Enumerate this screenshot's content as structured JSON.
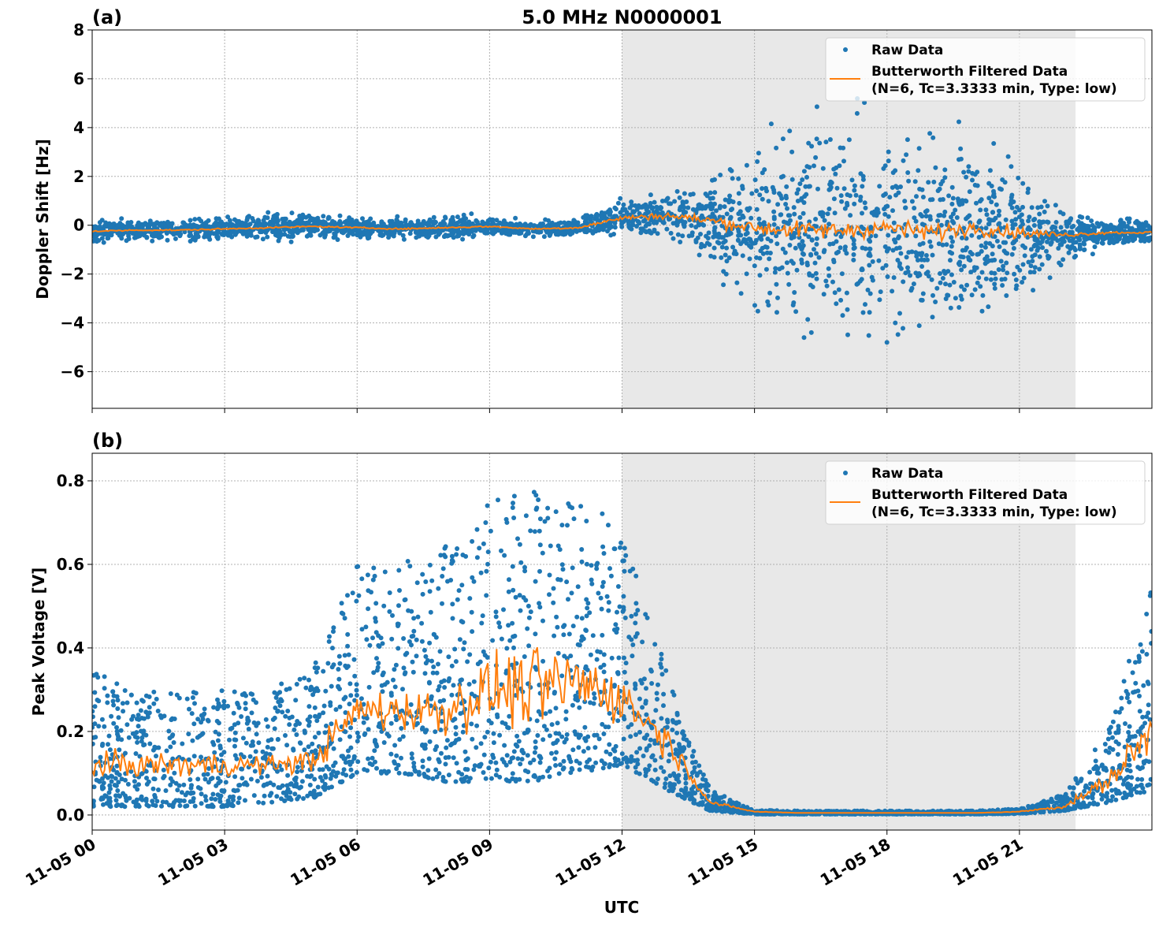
{
  "chart_data": [
    {
      "type": "scatter",
      "panel_label": "(a)",
      "title": "5.0 MHz N0000001",
      "xlabel": "",
      "ylabel": "Doppler Shift [Hz]",
      "xlim_hours_utc": [
        0,
        24
      ],
      "ylim": [
        -7.5,
        8
      ],
      "yticks": [
        -6,
        -4,
        -2,
        0,
        2,
        4,
        6,
        8
      ],
      "ytick_labels": [
        "−6",
        "−4",
        "−2",
        "0",
        "2",
        "4",
        "6",
        "8"
      ],
      "grid": true,
      "shaded_span_hours_utc": [
        12,
        22.27
      ],
      "legend_placement": "upper right",
      "legend": [
        "Raw Data",
        "Butterworth Filtered Data",
        "(N=6, Tc=3.3333 min, Type: low)"
      ],
      "series": [
        {
          "name": "Raw Data",
          "kind": "scatter",
          "color": "#1f77b4",
          "hours": [
            0,
            1,
            2,
            3,
            4,
            5,
            6,
            7,
            8,
            9,
            10,
            11,
            12,
            13,
            14,
            15,
            16,
            17,
            18,
            19,
            20,
            21,
            22,
            23,
            24
          ],
          "center": [
            -0.25,
            -0.2,
            -0.2,
            -0.15,
            -0.1,
            -0.05,
            -0.1,
            -0.15,
            -0.1,
            -0.05,
            -0.15,
            -0.1,
            0.3,
            0.4,
            0.2,
            -0.1,
            -0.2,
            -0.2,
            -0.1,
            -0.3,
            -0.1,
            -0.3,
            -0.4,
            -0.3,
            -0.3
          ],
          "half_spread": [
            0.4,
            0.4,
            0.4,
            0.45,
            0.5,
            0.45,
            0.35,
            0.35,
            0.4,
            0.35,
            0.3,
            0.3,
            0.6,
            0.8,
            1.5,
            3,
            3.5,
            3.8,
            3.8,
            3.5,
            3.2,
            2.5,
            1,
            0.5,
            0.5
          ]
        },
        {
          "name": "Butterworth Filtered Data",
          "kind": "line",
          "color": "#ff7f0e",
          "hours": [
            0,
            1,
            2,
            3,
            4,
            5,
            6,
            7,
            8,
            9,
            10,
            11,
            12,
            13,
            14,
            15,
            16,
            17,
            18,
            19,
            20,
            21,
            22,
            23,
            24
          ],
          "values": [
            -0.25,
            -0.2,
            -0.2,
            -0.15,
            -0.1,
            -0.05,
            -0.1,
            -0.15,
            -0.1,
            -0.05,
            -0.15,
            -0.1,
            0.3,
            0.4,
            0.2,
            -0.1,
            -0.2,
            -0.2,
            -0.1,
            -0.3,
            -0.1,
            -0.3,
            -0.4,
            -0.3,
            -0.3
          ],
          "jitter": [
            0.03,
            0.03,
            0.03,
            0.03,
            0.03,
            0.03,
            0.03,
            0.03,
            0.03,
            0.03,
            0.03,
            0.05,
            0.1,
            0.15,
            0.2,
            0.3,
            0.35,
            0.35,
            0.35,
            0.35,
            0.3,
            0.25,
            0.1,
            0.05,
            0.05
          ]
        }
      ]
    },
    {
      "type": "scatter",
      "panel_label": "(b)",
      "xlabel": "UTC",
      "ylabel": "Peak Voltage [V]",
      "xlim_hours_utc": [
        0,
        24
      ],
      "xticks_hours": [
        0,
        3,
        6,
        9,
        12,
        15,
        18,
        21
      ],
      "xtick_labels": [
        "11-05 00",
        "11-05 03",
        "11-05 06",
        "11-05 09",
        "11-05 12",
        "11-05 15",
        "11-05 18",
        "11-05 21"
      ],
      "ylim": [
        -0.036,
        0.866
      ],
      "yticks": [
        0.0,
        0.2,
        0.4,
        0.6,
        0.8
      ],
      "ytick_labels": [
        "0.0",
        "0.2",
        "0.4",
        "0.6",
        "0.8"
      ],
      "grid": true,
      "shaded_span_hours_utc": [
        12,
        22.27
      ],
      "legend_placement": "upper right",
      "legend": [
        "Raw Data",
        "Butterworth Filtered Data",
        "(N=6, Tc=3.3333 min, Type: low)"
      ],
      "series": [
        {
          "name": "Raw Data",
          "kind": "scatter",
          "color": "#1f77b4",
          "hours": [
            0,
            1,
            2,
            3,
            4,
            5,
            6,
            7,
            8,
            9,
            10,
            11,
            12,
            13,
            14,
            15,
            16,
            17,
            18,
            19,
            20,
            21,
            22,
            23,
            24
          ],
          "lower": [
            0.02,
            0.02,
            0.02,
            0.02,
            0.03,
            0.04,
            0.1,
            0.1,
            0.08,
            0.08,
            0.08,
            0.1,
            0.12,
            0.06,
            0.01,
            0.002,
            0.002,
            0.002,
            0.002,
            0.002,
            0.002,
            0.003,
            0.01,
            0.03,
            0.06
          ],
          "upper": [
            0.35,
            0.3,
            0.3,
            0.3,
            0.3,
            0.35,
            0.6,
            0.6,
            0.65,
            0.75,
            0.8,
            0.75,
            0.7,
            0.35,
            0.06,
            0.012,
            0.01,
            0.01,
            0.01,
            0.01,
            0.01,
            0.015,
            0.05,
            0.2,
            0.55
          ]
        },
        {
          "name": "Butterworth Filtered Data",
          "kind": "line",
          "color": "#ff7f0e",
          "hours": [
            0,
            1,
            2,
            3,
            4,
            5,
            6,
            7,
            8,
            9,
            10,
            11,
            12,
            13,
            14,
            15,
            16,
            17,
            18,
            19,
            20,
            21,
            22,
            23,
            24
          ],
          "values": [
            0.12,
            0.12,
            0.12,
            0.12,
            0.12,
            0.13,
            0.25,
            0.25,
            0.25,
            0.3,
            0.3,
            0.32,
            0.28,
            0.18,
            0.03,
            0.008,
            0.005,
            0.005,
            0.005,
            0.005,
            0.005,
            0.008,
            0.02,
            0.08,
            0.2
          ],
          "jitter": [
            0.03,
            0.03,
            0.03,
            0.03,
            0.02,
            0.03,
            0.05,
            0.05,
            0.06,
            0.08,
            0.1,
            0.08,
            0.06,
            0.04,
            0.005,
            0.001,
            0,
            0,
            0,
            0,
            0,
            0.001,
            0.005,
            0.02,
            0.06
          ]
        }
      ]
    }
  ]
}
